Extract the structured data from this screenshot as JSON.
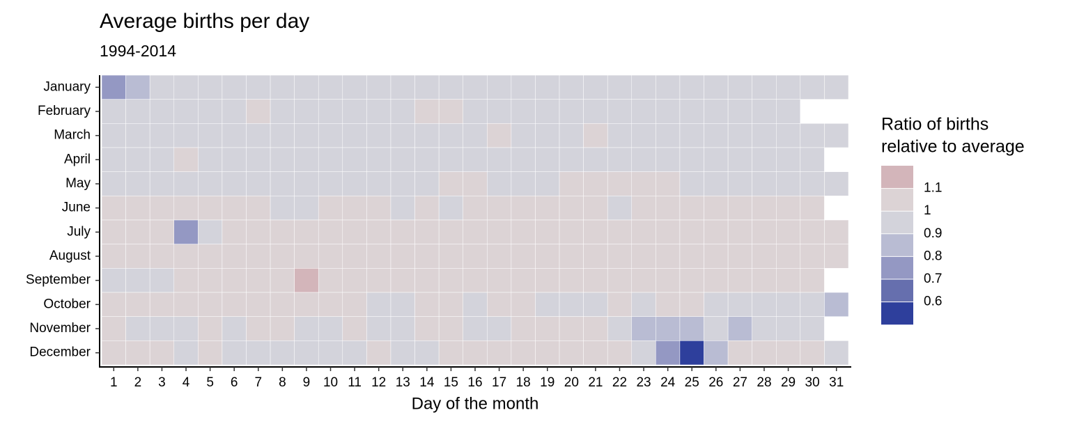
{
  "chart_data": {
    "type": "heatmap",
    "title": "Average births per day",
    "subtitle": "1994-2014",
    "x_label": "Day of the month",
    "x": [
      1,
      2,
      3,
      4,
      5,
      6,
      7,
      8,
      9,
      10,
      11,
      12,
      13,
      14,
      15,
      16,
      17,
      18,
      19,
      20,
      21,
      22,
      23,
      24,
      25,
      26,
      27,
      28,
      29,
      30,
      31
    ],
    "y": [
      "January",
      "February",
      "March",
      "April",
      "May",
      "June",
      "July",
      "August",
      "September",
      "October",
      "November",
      "December"
    ],
    "values": [
      [
        0.75,
        0.85,
        0.97,
        0.97,
        0.97,
        0.97,
        0.97,
        0.97,
        0.97,
        0.97,
        0.97,
        0.97,
        0.97,
        0.97,
        0.97,
        0.97,
        0.97,
        0.97,
        0.97,
        0.97,
        0.97,
        0.97,
        0.97,
        0.97,
        0.97,
        0.97,
        0.97,
        0.97,
        0.97,
        0.97,
        0.97
      ],
      [
        0.97,
        0.97,
        0.97,
        0.97,
        0.97,
        0.97,
        1.02,
        0.97,
        0.97,
        0.97,
        0.97,
        0.97,
        0.97,
        1.02,
        1.02,
        0.97,
        0.97,
        0.97,
        0.97,
        0.97,
        0.97,
        0.97,
        0.97,
        0.97,
        0.97,
        0.97,
        0.97,
        0.97,
        0.97,
        null,
        null
      ],
      [
        0.97,
        0.97,
        0.97,
        0.97,
        0.97,
        0.97,
        0.97,
        0.97,
        0.97,
        0.97,
        0.97,
        0.97,
        0.97,
        0.97,
        0.97,
        0.97,
        1.02,
        0.97,
        0.97,
        0.97,
        1.02,
        0.97,
        0.97,
        0.97,
        0.97,
        0.97,
        0.97,
        0.97,
        0.97,
        0.97,
        0.97
      ],
      [
        0.97,
        0.97,
        0.97,
        1.02,
        0.97,
        0.97,
        0.97,
        0.97,
        0.97,
        0.97,
        0.97,
        0.97,
        0.97,
        0.97,
        0.97,
        0.97,
        0.97,
        0.97,
        0.97,
        0.97,
        0.97,
        0.97,
        0.97,
        0.97,
        0.97,
        0.97,
        0.97,
        0.97,
        0.97,
        0.97,
        null
      ],
      [
        0.97,
        0.97,
        0.97,
        0.97,
        0.97,
        0.97,
        0.97,
        0.97,
        0.97,
        0.97,
        0.97,
        0.97,
        0.97,
        0.97,
        1.02,
        1.02,
        0.97,
        0.97,
        0.97,
        1.02,
        1.02,
        1.02,
        1.02,
        1.02,
        0.97,
        0.97,
        0.97,
        0.97,
        0.97,
        0.97,
        0.97
      ],
      [
        1.03,
        1.03,
        1.03,
        1.03,
        1.03,
        1.03,
        1.03,
        0.97,
        0.97,
        1.03,
        1.03,
        1.03,
        0.97,
        1.03,
        0.97,
        1.03,
        1.03,
        1.03,
        1.03,
        1.03,
        1.03,
        0.97,
        1.03,
        1.03,
        1.03,
        1.03,
        1.03,
        1.03,
        1.03,
        1.03,
        null
      ],
      [
        1.03,
        1.03,
        1.03,
        0.75,
        0.97,
        1.03,
        1.03,
        1.03,
        1.03,
        1.03,
        1.03,
        1.03,
        1.03,
        1.03,
        1.03,
        1.03,
        1.03,
        1.03,
        1.03,
        1.03,
        1.03,
        1.03,
        1.03,
        1.03,
        1.03,
        1.03,
        1.03,
        1.03,
        1.03,
        1.03,
        1.03
      ],
      [
        1.04,
        1.04,
        1.04,
        1.04,
        1.04,
        1.04,
        1.04,
        1.04,
        1.04,
        1.04,
        1.04,
        1.04,
        1.04,
        1.04,
        1.04,
        1.04,
        1.04,
        1.04,
        1.04,
        1.04,
        1.04,
        1.04,
        1.04,
        1.04,
        1.04,
        1.04,
        1.04,
        1.04,
        1.04,
        1.04,
        1.04
      ],
      [
        0.97,
        0.97,
        0.97,
        1.03,
        1.03,
        1.03,
        1.03,
        1.03,
        1.12,
        1.03,
        1.03,
        1.03,
        1.03,
        1.03,
        1.03,
        1.03,
        1.03,
        1.03,
        1.03,
        1.03,
        1.03,
        1.03,
        1.03,
        1.03,
        1.03,
        1.03,
        1.03,
        1.03,
        1.03,
        1.03,
        null
      ],
      [
        1.03,
        1.03,
        1.03,
        1.03,
        1.03,
        1.03,
        1.03,
        1.03,
        1.03,
        1.03,
        1.03,
        0.97,
        0.97,
        1.03,
        1.03,
        0.97,
        1.03,
        1.03,
        0.97,
        0.97,
        0.97,
        1.03,
        0.97,
        1.03,
        1.03,
        0.97,
        0.97,
        0.97,
        0.97,
        0.97,
        0.85
      ],
      [
        1.02,
        0.97,
        0.97,
        0.97,
        1.02,
        0.97,
        1.02,
        1.02,
        0.97,
        0.97,
        1.02,
        0.97,
        0.97,
        1.02,
        1.02,
        0.97,
        0.97,
        1.02,
        1.02,
        1.02,
        1.02,
        0.97,
        0.85,
        0.85,
        0.85,
        0.97,
        0.85,
        0.97,
        0.97,
        0.97,
        null
      ],
      [
        1.02,
        1.02,
        1.02,
        0.97,
        1.02,
        0.97,
        0.97,
        0.97,
        0.97,
        0.97,
        0.97,
        1.02,
        0.97,
        0.97,
        1.02,
        1.02,
        1.02,
        1.02,
        1.02,
        1.02,
        1.02,
        1.02,
        0.97,
        0.75,
        0.58,
        0.85,
        1.02,
        1.02,
        1.02,
        1.02,
        0.97
      ]
    ],
    "breaks": [
      0.6,
      0.7,
      0.8,
      0.9,
      1.0,
      1.1
    ],
    "colors": [
      "#2e3f9c",
      "#666fae",
      "#9498c3",
      "#b9bcd3",
      "#d3d3db",
      "#dcd3d5",
      "#d3b5ba"
    ],
    "legend_title": [
      "Ratio of births",
      "relative to average"
    ]
  }
}
